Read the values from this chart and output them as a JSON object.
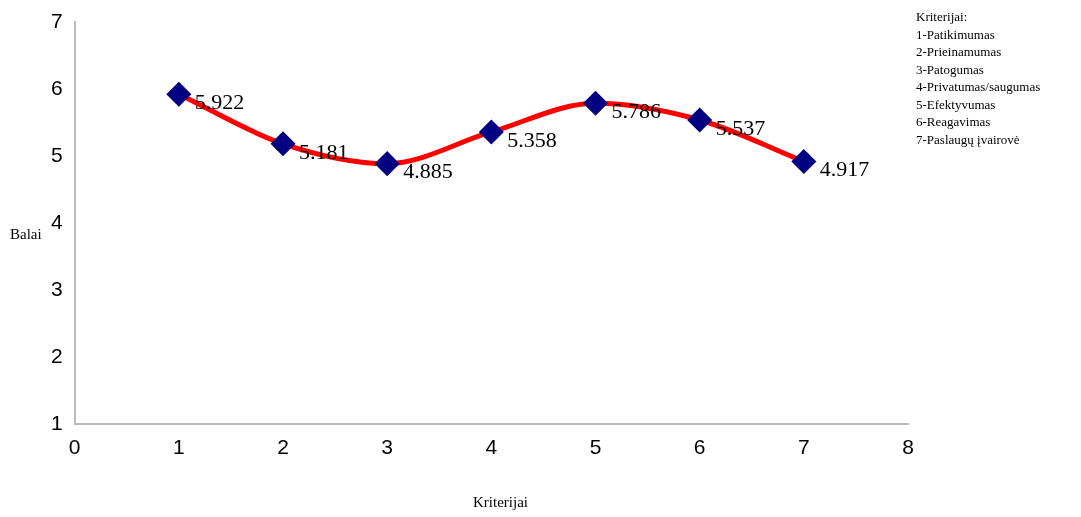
{
  "chart_data": {
    "type": "line",
    "xlabel": "Kriterijai",
    "ylabel": "Balai",
    "x": [
      1,
      2,
      3,
      4,
      5,
      6,
      7
    ],
    "series": [
      {
        "color": "#ff0000",
        "colors": [
          "#000080",
          "#000080",
          "#000080",
          "#000080",
          "#000080",
          "#000080",
          "#000080"
        ],
        "values": [
          5.922,
          5.181,
          4.885,
          5.358,
          5.786,
          5.537,
          4.917
        ]
      }
    ],
    "xlim": [
      0,
      8
    ],
    "xticks": [
      0,
      1,
      2,
      3,
      4,
      5,
      6,
      7,
      8
    ],
    "ylim": [
      1,
      7
    ],
    "yticks": [
      1,
      2,
      3,
      4,
      5,
      6,
      7
    ],
    "marker": "diamond",
    "data_labels": true,
    "grid": false,
    "legend": false,
    "annotations": [
      "Kriterijai:",
      "1-Patikimumas",
      "2-Prieinamumas",
      "3-Patogumas",
      "4-Privatumas/saugumas",
      "5-Efektyvumas",
      "6-Reagavimas",
      "7-Paslaugų įvairovė"
    ]
  }
}
